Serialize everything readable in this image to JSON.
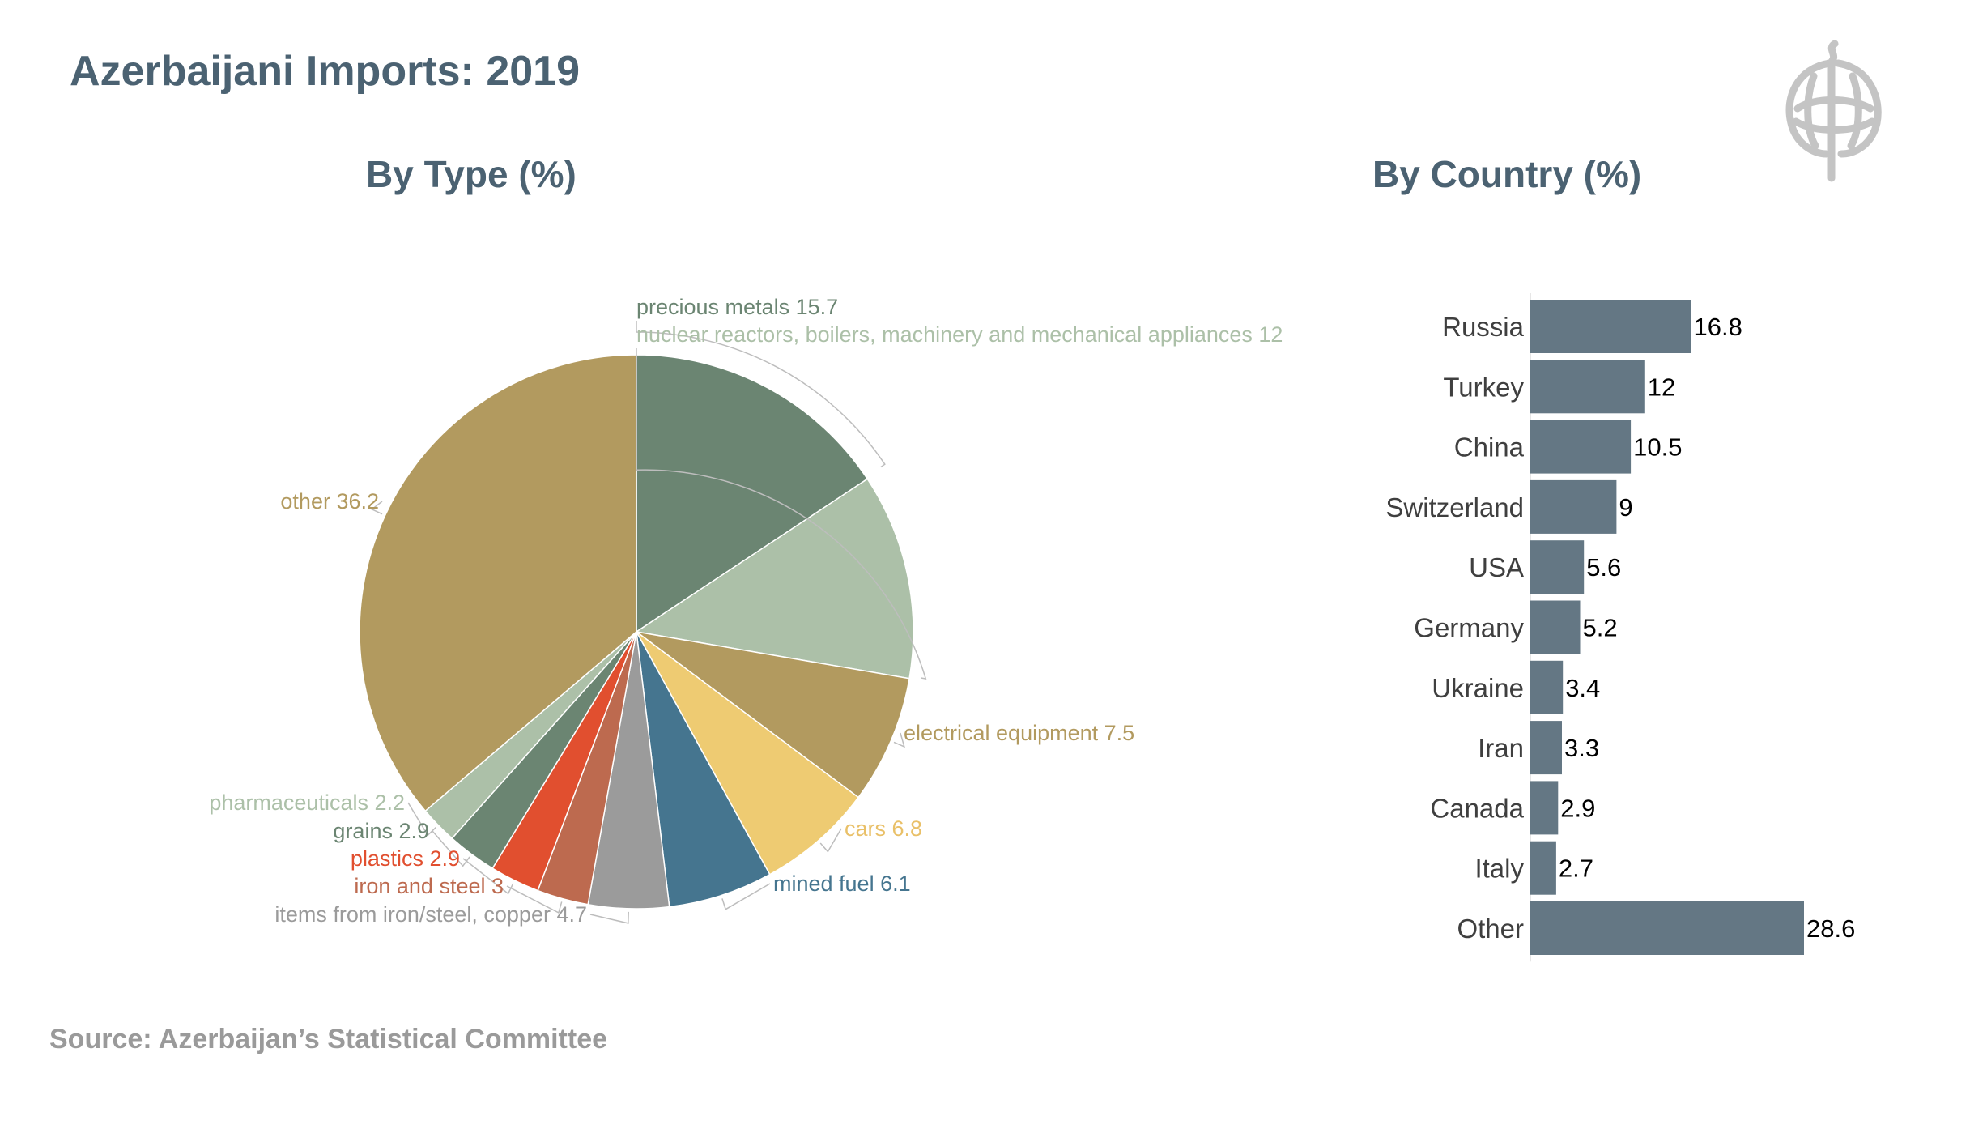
{
  "title": "Azerbaijani Imports: 2019",
  "source": "Source: Azerbaijan’s Statistical Committee",
  "logo": {
    "icon": "ornamental-symbol-icon",
    "color": "#c4c4c4"
  },
  "chart_data": [
    {
      "type": "pie",
      "title": "By Type (%)",
      "start_angle_deg": 0,
      "direction": "clockwise",
      "slices": [
        {
          "label": "precious metals",
          "value": 15.7,
          "color": "#6b8572"
        },
        {
          "label": "nuclear reactors, boilers, machinery and mechanical appliances",
          "value": 12,
          "color": "#acc0a8"
        },
        {
          "label": "electrical equipment",
          "value": 7.5,
          "color": "#b29a5f"
        },
        {
          "label": "cars",
          "value": 6.8,
          "color": "#eecb72"
        },
        {
          "label": "mined fuel",
          "value": 6.1,
          "color": "#45758f"
        },
        {
          "label": "items from iron/steel, copper",
          "value": 4.7,
          "color": "#9b9b9b"
        },
        {
          "label": "iron and steel",
          "value": 3,
          "color": "#bd6a4f"
        },
        {
          "label": "plastics",
          "value": 2.9,
          "color": "#e14f2f"
        },
        {
          "label": "grains",
          "value": 2.9,
          "color": "#6b8572"
        },
        {
          "label": "pharmaceuticals",
          "value": 2.2,
          "color": "#acc0a8"
        },
        {
          "label": "other",
          "value": 36.2,
          "color": "#b29a5f"
        }
      ]
    },
    {
      "type": "bar",
      "orientation": "horizontal",
      "title": "By Country (%)",
      "categories": [
        "Russia",
        "Turkey",
        "China",
        "Switzerland",
        "USA",
        "Germany",
        "Ukraine",
        "Iran",
        "Canada",
        "Italy",
        "Other"
      ],
      "values": [
        16.8,
        12,
        10.5,
        9,
        5.6,
        5.2,
        3.4,
        3.3,
        2.9,
        2.7,
        28.6
      ],
      "color": "#647784",
      "xlim": [
        0,
        28.6
      ]
    }
  ]
}
